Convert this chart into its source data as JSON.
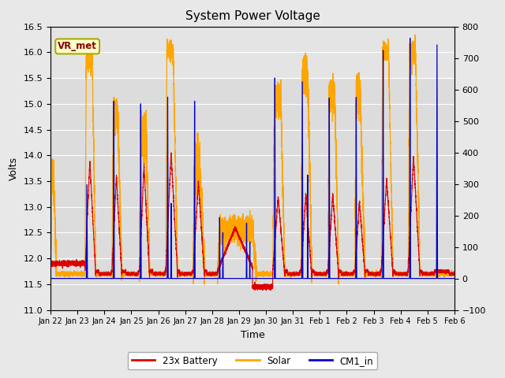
{
  "title": "System Power Voltage",
  "xlabel": "Time",
  "ylabel_left": "Volts",
  "ylim_left": [
    11.0,
    16.5
  ],
  "ylim_right": [
    -100,
    800
  ],
  "bg_color": "#e8e8e8",
  "plot_bg": "#dcdcdc",
  "grid_color": "#ffffff",
  "annotation_text": "VR_met",
  "annotation_bg": "#ffffcc",
  "annotation_border": "#aaaa00",
  "legend_entries": [
    "23x Battery",
    "Solar",
    "CM1_in"
  ],
  "line_colors": [
    "#dd0000",
    "#ffa500",
    "#0000cc"
  ],
  "xtick_labels": [
    "Jan 22",
    "Jan 23",
    "Jan 24",
    "Jan 25",
    "Jan 26",
    "Jan 27",
    "Jan 28",
    "Jan 29",
    "Jan 30",
    "Jan 31",
    "Feb 1",
    "Feb 2",
    "Feb 3",
    "Feb 4",
    "Feb 5",
    "Feb 6"
  ],
  "days": 15
}
